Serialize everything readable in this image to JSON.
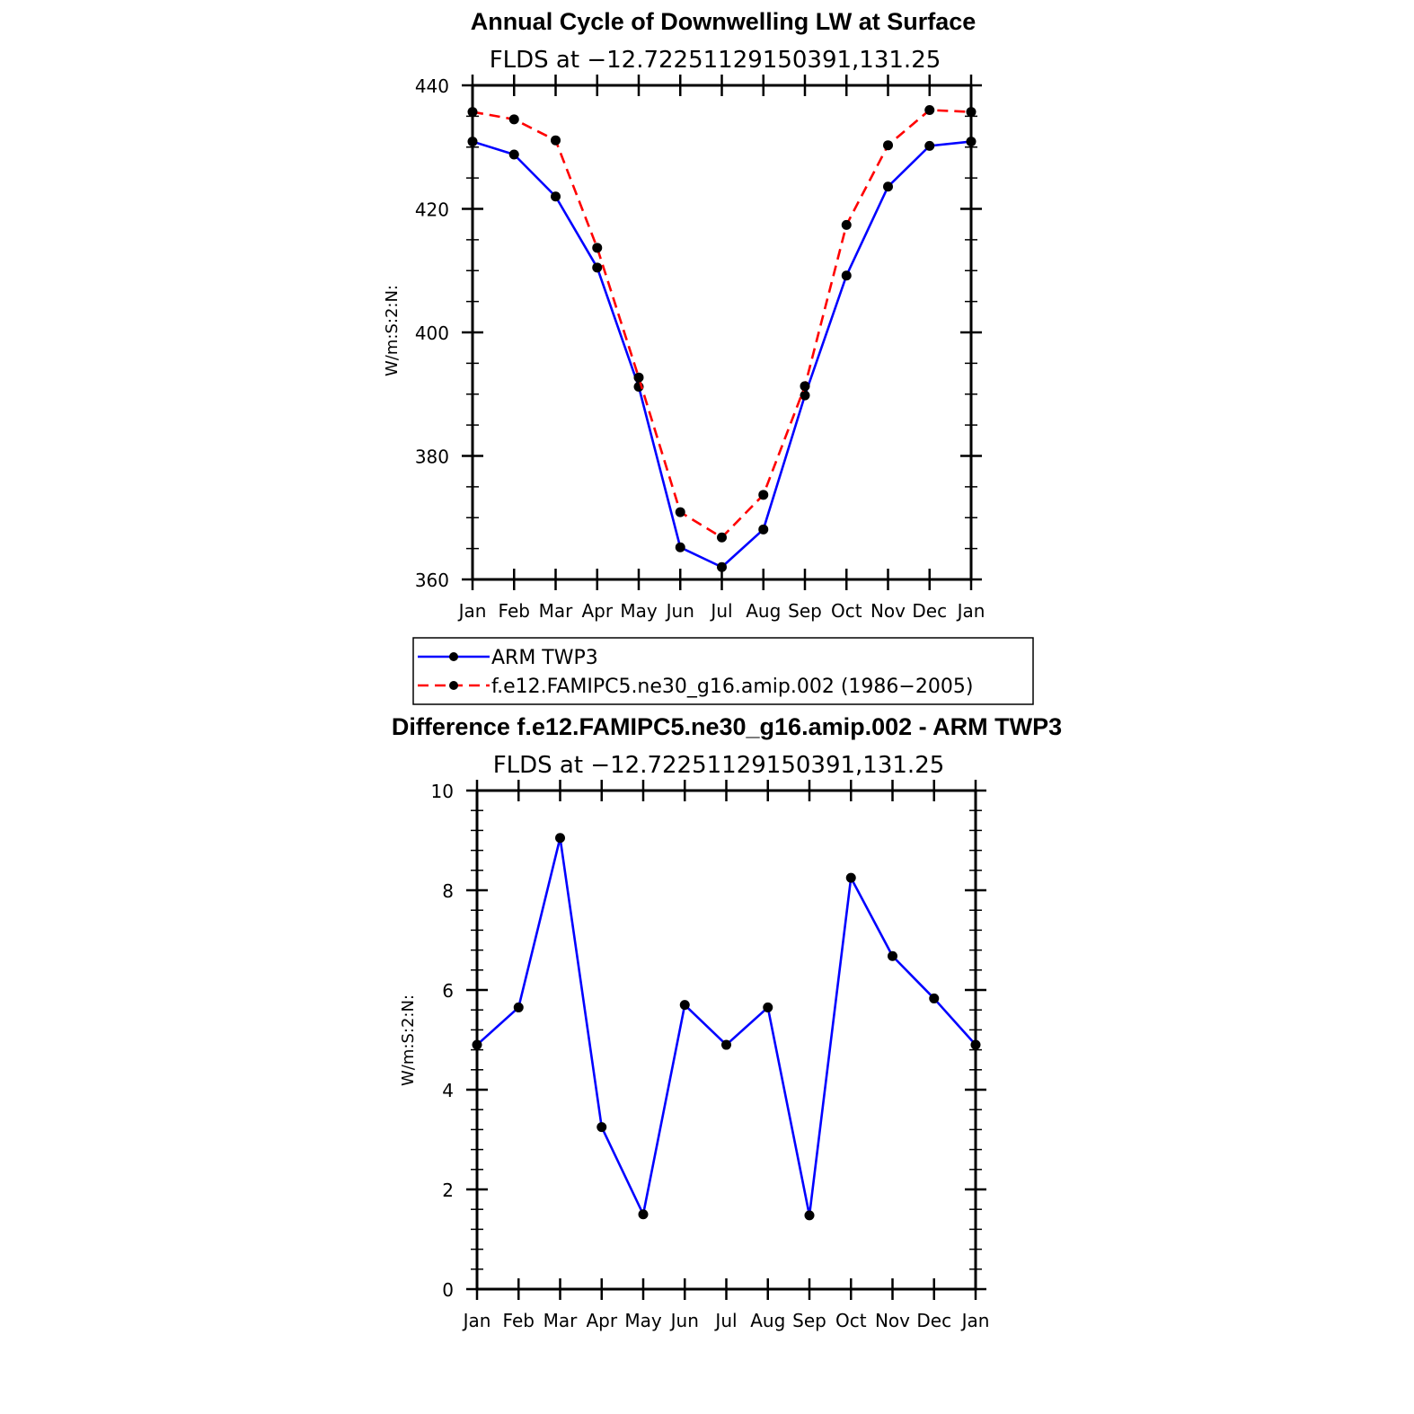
{
  "chart_data": [
    {
      "type": "line",
      "title": "Annual Cycle of Downwelling LW at Surface",
      "subtitle": "FLDS at −12.72251129150391,131.25",
      "ylabel": "W/m:S:2:N:",
      "xlabel": "",
      "categories": [
        "Jan",
        "Feb",
        "Mar",
        "Apr",
        "May",
        "Jun",
        "Jul",
        "Aug",
        "Sep",
        "Oct",
        "Nov",
        "Dec",
        "Jan"
      ],
      "ylim": [
        360,
        440
      ],
      "yticks": [
        360,
        380,
        400,
        420,
        440
      ],
      "ytick_labels": [
        "360",
        "380",
        "400",
        "420",
        "440"
      ],
      "series": [
        {
          "name": "ARM TWP3",
          "color": "#0000ff",
          "style": "solid",
          "values": [
            430.9,
            428.8,
            422.0,
            410.5,
            391.2,
            365.2,
            362.0,
            368.1,
            389.8,
            409.2,
            423.6,
            430.2,
            430.9
          ]
        },
        {
          "name": "f.e12.FAMIPC5.ne30_g16.amip.002 (1986−2005)",
          "color": "#ff0000",
          "style": "dashed",
          "values": [
            435.7,
            434.5,
            431.1,
            413.7,
            392.7,
            370.9,
            366.8,
            373.7,
            391.3,
            417.4,
            430.3,
            436.0,
            435.7
          ]
        }
      ],
      "legend": "below"
    },
    {
      "type": "line",
      "title": "Difference f.e12.FAMIPC5.ne30_g16.amip.002 - ARM TWP3",
      "subtitle": "FLDS at −12.72251129150391,131.25",
      "ylabel": "W/m:S:2:N:",
      "xlabel": "",
      "categories": [
        "Jan",
        "Feb",
        "Mar",
        "Apr",
        "May",
        "Jun",
        "Jul",
        "Aug",
        "Sep",
        "Oct",
        "Nov",
        "Dec",
        "Jan"
      ],
      "ylim": [
        0,
        10
      ],
      "yticks": [
        0,
        2,
        4,
        6,
        8,
        10
      ],
      "ytick_labels": [
        "0",
        "2",
        "4",
        "6",
        "8",
        "10"
      ],
      "series": [
        {
          "name": "Difference",
          "color": "#0000ff",
          "style": "solid",
          "values": [
            4.9,
            5.65,
            9.05,
            3.25,
            1.5,
            5.7,
            4.9,
            5.65,
            1.48,
            8.25,
            6.68,
            5.83,
            4.9
          ]
        }
      ]
    }
  ]
}
